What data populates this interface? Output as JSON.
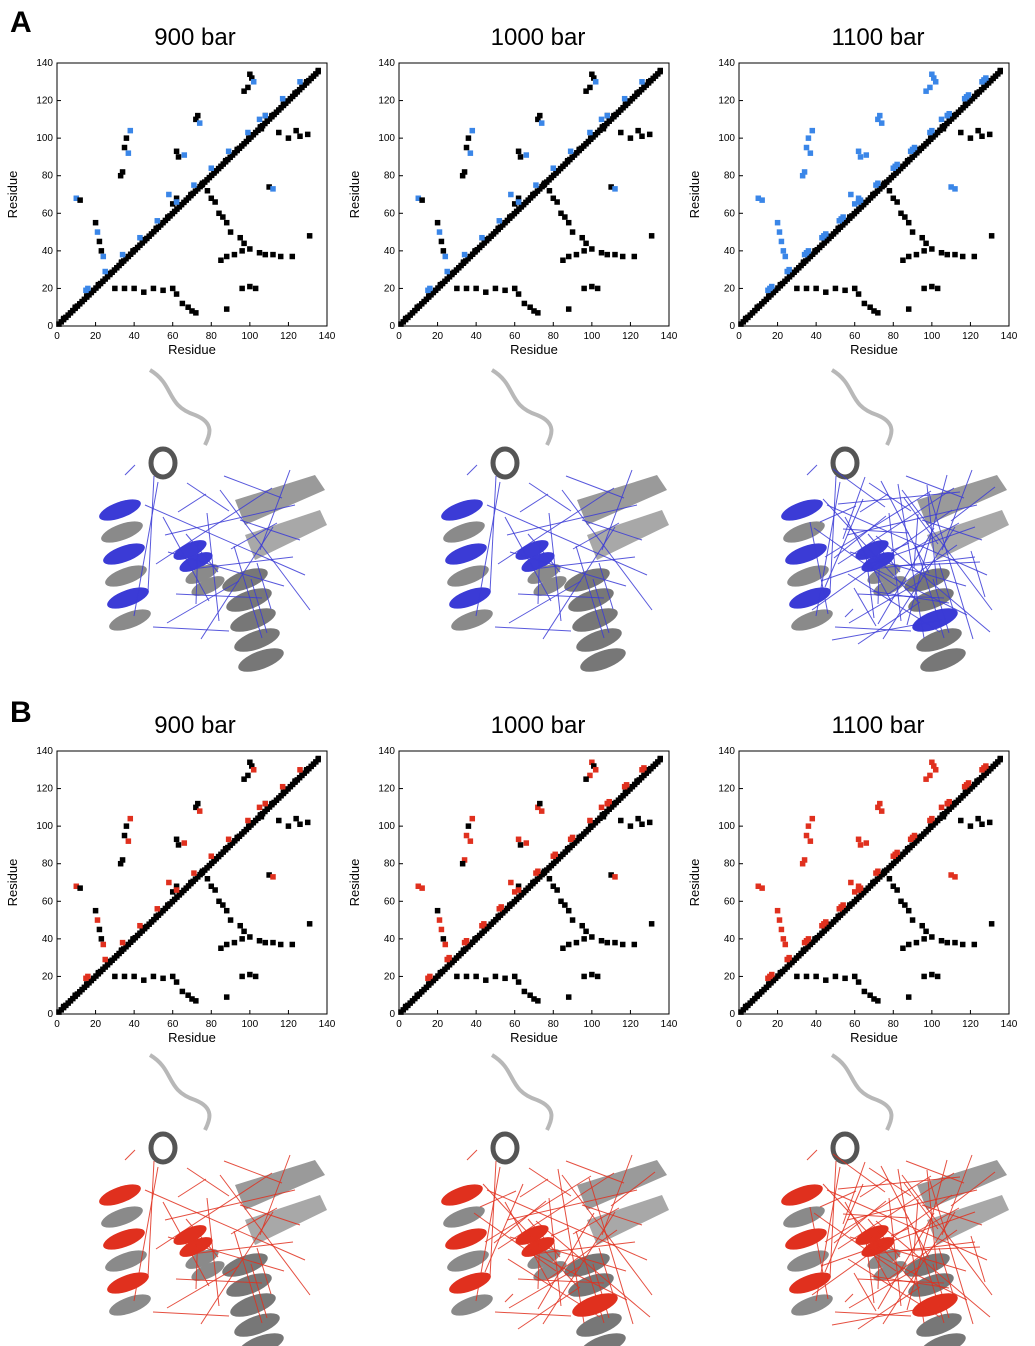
{
  "figure": {
    "panels": [
      {
        "letter": "A",
        "accent": "#3a86e8",
        "struct_accent": "#3b3bd6"
      },
      {
        "letter": "B",
        "accent": "#e0301e",
        "struct_accent": "#e0301e"
      }
    ]
  },
  "chart_data": [
    {
      "type": "heatmap",
      "panel": "A",
      "title": "900 bar",
      "xlabel": "Residue",
      "ylabel": "Residue",
      "xlim": [
        0,
        140
      ],
      "ylim": [
        0,
        140
      ],
      "xticks": [
        0,
        20,
        40,
        60,
        80,
        100,
        120,
        140
      ],
      "yticks": [
        0,
        20,
        40,
        60,
        80,
        100,
        120,
        140
      ],
      "contact_color": "#000000",
      "highlight_color": "#3a86e8",
      "highlight_level": 1
    },
    {
      "type": "heatmap",
      "panel": "A",
      "title": "1000 bar",
      "xlabel": "Residue",
      "ylabel": "Residue",
      "xlim": [
        0,
        140
      ],
      "ylim": [
        0,
        140
      ],
      "xticks": [
        0,
        20,
        40,
        60,
        80,
        100,
        120,
        140
      ],
      "yticks": [
        0,
        20,
        40,
        60,
        80,
        100,
        120,
        140
      ],
      "contact_color": "#000000",
      "highlight_color": "#3a86e8",
      "highlight_level": 1
    },
    {
      "type": "heatmap",
      "panel": "A",
      "title": "1100 bar",
      "xlabel": "Residue",
      "ylabel": "Residue",
      "xlim": [
        0,
        140
      ],
      "ylim": [
        0,
        140
      ],
      "xticks": [
        0,
        20,
        40,
        60,
        80,
        100,
        120,
        140
      ],
      "yticks": [
        0,
        20,
        40,
        60,
        80,
        100,
        120,
        140
      ],
      "contact_color": "#000000",
      "highlight_color": "#3a86e8",
      "highlight_level": 3
    },
    {
      "type": "heatmap",
      "panel": "B",
      "title": "900 bar",
      "xlabel": "Residue",
      "ylabel": "Residue",
      "xlim": [
        0,
        140
      ],
      "ylim": [
        0,
        140
      ],
      "xticks": [
        0,
        20,
        40,
        60,
        80,
        100,
        120,
        140
      ],
      "yticks": [
        0,
        20,
        40,
        60,
        80,
        100,
        120,
        140
      ],
      "contact_color": "#000000",
      "highlight_color": "#e0301e",
      "highlight_level": 1
    },
    {
      "type": "heatmap",
      "panel": "B",
      "title": "1000 bar",
      "xlabel": "Residue",
      "ylabel": "Residue",
      "xlim": [
        0,
        140
      ],
      "ylim": [
        0,
        140
      ],
      "xticks": [
        0,
        20,
        40,
        60,
        80,
        100,
        120,
        140
      ],
      "yticks": [
        0,
        20,
        40,
        60,
        80,
        100,
        120,
        140
      ],
      "contact_color": "#000000",
      "highlight_color": "#e0301e",
      "highlight_level": 2
    },
    {
      "type": "heatmap",
      "panel": "B",
      "title": "1100 bar",
      "xlabel": "Residue",
      "ylabel": "Residue",
      "xlim": [
        0,
        140
      ],
      "ylim": [
        0,
        140
      ],
      "xticks": [
        0,
        20,
        40,
        60,
        80,
        100,
        120,
        140
      ],
      "yticks": [
        0,
        20,
        40,
        60,
        80,
        100,
        120,
        140
      ],
      "contact_color": "#000000",
      "highlight_color": "#e0301e",
      "highlight_level": 3
    }
  ]
}
